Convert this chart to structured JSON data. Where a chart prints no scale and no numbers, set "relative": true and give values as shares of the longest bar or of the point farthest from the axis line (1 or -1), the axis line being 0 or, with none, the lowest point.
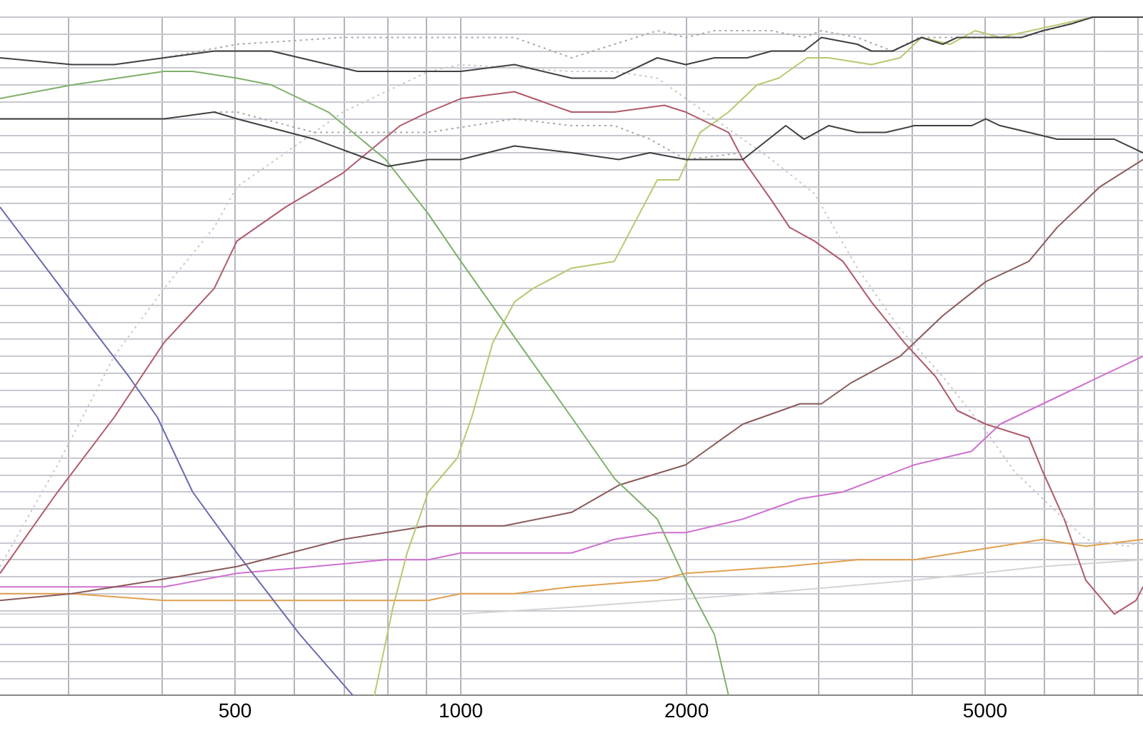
{
  "chart_data": {
    "type": "line",
    "relative": true,
    "log": "x",
    "grid": true,
    "legend": false,
    "marker": "none",
    "line_style": "solid",
    "xlim": [
      243,
      8120
    ],
    "xticks": [
      {
        "value": 300,
        "label": null
      },
      {
        "value": 400,
        "label": null
      },
      500,
      {
        "value": 600,
        "label": null
      },
      {
        "value": 700,
        "label": null
      },
      {
        "value": 800,
        "label": null
      },
      {
        "value": 900,
        "label": null
      },
      1000,
      2000,
      {
        "value": 3000,
        "label": null
      },
      {
        "value": 4000,
        "label": null
      },
      5000,
      {
        "value": 6000,
        "label": null
      },
      {
        "value": 7000,
        "label": null
      },
      {
        "value": 8000,
        "label": null
      }
    ],
    "series": [
      {
        "color": "#404040",
        "x": [
          243,
          303,
          345,
          402,
          469,
          503,
          559,
          728,
          830,
          905,
          1000,
          1179,
          1405,
          1602,
          1828,
          1995,
          2178,
          2410,
          2596,
          2869,
          3025,
          3378,
          3528,
          3765,
          4114,
          4392,
          4590,
          4850,
          5237,
          5594,
          5969,
          6513,
          6962,
          8120
        ],
        "values": [
          0.94,
          0.93,
          0.93,
          0.94,
          0.95,
          0.95,
          0.95,
          0.92,
          0.92,
          0.92,
          0.92,
          0.93,
          0.91,
          0.91,
          0.94,
          0.93,
          0.94,
          0.94,
          0.95,
          0.95,
          0.97,
          0.96,
          0.95,
          0.95,
          0.97,
          0.96,
          0.97,
          0.97,
          0.97,
          0.97,
          0.98,
          0.99,
          1.0,
          1.0
        ]
      },
      {
        "color": "#404040",
        "x": [
          243,
          303,
          402,
          469,
          503,
          638,
          800,
          905,
          1000,
          1179,
          1405,
          1624,
          1788,
          1995,
          2377,
          2712,
          2869,
          3093,
          3378,
          3686,
          4024,
          4204,
          4797,
          5011,
          5237,
          5720,
          6238,
          6811,
          7436,
          8120
        ],
        "values": [
          0.85,
          0.85,
          0.85,
          0.86,
          0.85,
          0.82,
          0.78,
          0.79,
          0.79,
          0.81,
          0.8,
          0.79,
          0.8,
          0.79,
          0.79,
          0.84,
          0.82,
          0.84,
          0.83,
          0.83,
          0.84,
          0.84,
          0.84,
          0.85,
          0.84,
          0.83,
          0.82,
          0.82,
          0.82,
          0.8
        ]
      },
      {
        "color": "#a8a8a8",
        "line_style": "dotted",
        "x": [
          402,
          503,
          696,
          830,
          989,
          1179,
          1405,
          1602,
          1828,
          1995,
          2178,
          2596,
          2869,
          3025,
          3378,
          3765,
          4077,
          4797,
          5594,
          6962,
          8120
        ],
        "values": [
          0.94,
          0.96,
          0.97,
          0.97,
          0.97,
          0.97,
          0.94,
          0.96,
          0.98,
          0.97,
          0.98,
          0.98,
          0.97,
          0.98,
          0.97,
          0.95,
          0.97,
          0.97,
          0.97,
          1.0,
          1.0
        ]
      },
      {
        "color": "#a8a8a8",
        "line_style": "dotted",
        "x": [
          469,
          503,
          638,
          905,
          1179,
          1405,
          1602,
          1788,
          1995,
          2377
        ],
        "values": [
          0.86,
          0.86,
          0.83,
          0.83,
          0.85,
          0.84,
          0.84,
          0.82,
          0.79,
          0.8
        ]
      },
      {
        "color": "#7fb06a",
        "x": [
          243,
          303,
          402,
          439,
          503,
          559,
          666,
          794,
          905,
          1000,
          1142,
          1405,
          1602,
          1828,
          1995,
          2178,
          2275
        ],
        "values": [
          0.88,
          0.9,
          0.92,
          0.92,
          0.91,
          0.9,
          0.86,
          0.79,
          0.71,
          0.64,
          0.55,
          0.41,
          0.32,
          0.26,
          0.17,
          0.09,
          0.0
        ]
      },
      {
        "color": "#6a6ab0",
        "x": [
          243,
          303,
          361,
          394,
          439,
          503,
          610,
          718
        ],
        "values": [
          0.72,
          0.58,
          0.47,
          0.41,
          0.3,
          0.21,
          0.09,
          0.0
        ]
      },
      {
        "color": "#c8c8c8",
        "line_style": "dotted",
        "x": [
          243,
          290,
          345,
          402,
          469,
          503,
          584,
          696,
          830,
          905,
          1000,
          1405,
          1602,
          1828,
          2178,
          2596,
          2960,
          3378,
          3852,
          4392,
          5011,
          5473,
          6100,
          6811,
          7771,
          8120
        ],
        "values": [
          0.19,
          0.34,
          0.5,
          0.6,
          0.69,
          0.75,
          0.8,
          0.86,
          0.9,
          0.92,
          0.93,
          0.92,
          0.92,
          0.91,
          0.85,
          0.79,
          0.74,
          0.63,
          0.54,
          0.47,
          0.39,
          0.33,
          0.28,
          0.23,
          0.22,
          0.23
        ]
      },
      {
        "color": "#b05a6a",
        "x": [
          243,
          290,
          345,
          402,
          469,
          503,
          584,
          696,
          830,
          905,
          1000,
          1179,
          1405,
          1602,
          1868,
          1995,
          2178,
          2275,
          2377,
          2596,
          2744,
          2960,
          3232,
          3528,
          3903,
          4296,
          4590,
          5011,
          5353,
          5720,
          5969,
          6376,
          6811,
          7436,
          7945,
          8120
        ],
        "values": [
          0.18,
          0.3,
          0.41,
          0.52,
          0.6,
          0.67,
          0.72,
          0.77,
          0.84,
          0.86,
          0.88,
          0.89,
          0.86,
          0.86,
          0.87,
          0.86,
          0.84,
          0.83,
          0.79,
          0.73,
          0.69,
          0.67,
          0.64,
          0.58,
          0.52,
          0.47,
          0.42,
          0.4,
          0.39,
          0.38,
          0.33,
          0.26,
          0.17,
          0.12,
          0.14,
          0.16
        ]
      },
      {
        "color": "#b8c870",
        "x": [
          767,
          812,
          848,
          905,
          989,
          1034,
          1103,
          1179,
          1248,
          1405,
          1602,
          1711,
          1828,
          1952,
          2085,
          2275,
          2483,
          2653,
          2897,
          3093,
          3528,
          3852,
          4114,
          4490,
          4850,
          5237,
          6962
        ],
        "values": [
          0.0,
          0.13,
          0.21,
          0.3,
          0.35,
          0.41,
          0.52,
          0.58,
          0.6,
          0.63,
          0.64,
          0.7,
          0.76,
          0.76,
          0.83,
          0.86,
          0.9,
          0.91,
          0.94,
          0.94,
          0.93,
          0.94,
          0.97,
          0.96,
          0.98,
          0.97,
          1.0
        ]
      },
      {
        "color": "#8a5a5a",
        "x": [
          243,
          303,
          394,
          503,
          696,
          905,
          1000,
          1142,
          1405,
          1624,
          1995,
          2377,
          2834,
          3025,
          3305,
          3852,
          4024,
          4392,
          5011,
          5720,
          6238,
          7117,
          8120
        ],
        "values": [
          0.14,
          0.15,
          0.17,
          0.19,
          0.23,
          0.25,
          0.25,
          0.25,
          0.27,
          0.31,
          0.34,
          0.4,
          0.43,
          0.43,
          0.46,
          0.5,
          0.52,
          0.56,
          0.61,
          0.64,
          0.69,
          0.75,
          0.79
        ]
      },
      {
        "color": "#d070d0",
        "x": [
          243,
          303,
          402,
          503,
          638,
          794,
          905,
          1000,
          1179,
          1405,
          1602,
          1828,
          1995,
          2377,
          2834,
          3232,
          4024,
          4797,
          5237,
          6238,
          7117,
          8120
        ],
        "values": [
          0.16,
          0.16,
          0.16,
          0.18,
          0.19,
          0.2,
          0.2,
          0.21,
          0.21,
          0.21,
          0.23,
          0.24,
          0.24,
          0.26,
          0.29,
          0.3,
          0.34,
          0.36,
          0.4,
          0.44,
          0.47,
          0.5
        ]
      },
      {
        "color": "#e0a050",
        "x": [
          243,
          303,
          402,
          503,
          696,
          905,
          1000,
          1179,
          1405,
          1828,
          1995,
          2712,
          3378,
          4024,
          5237,
          5969,
          6811,
          8120
        ],
        "values": [
          0.15,
          0.15,
          0.14,
          0.14,
          0.14,
          0.14,
          0.15,
          0.15,
          0.16,
          0.17,
          0.18,
          0.19,
          0.2,
          0.2,
          0.22,
          0.23,
          0.22,
          0.23
        ]
      },
      {
        "color": "#d4d4d4",
        "x": [
          243,
          503,
          1000,
          1405,
          2483,
          4024,
          5969,
          8120
        ],
        "values": [
          0.12,
          0.12,
          0.12,
          0.13,
          0.15,
          0.17,
          0.19,
          0.2
        ]
      }
    ]
  }
}
